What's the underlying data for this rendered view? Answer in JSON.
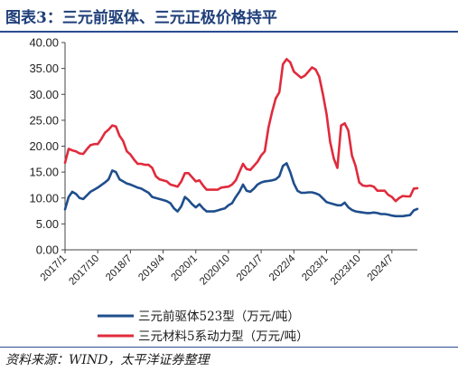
{
  "figure": {
    "title": "图表3：三元前驱体、三元正极价格持平",
    "source": "资料来源：WIND，太平洋证券整理"
  },
  "chart_data": {
    "type": "line",
    "title": "",
    "xlabel": "",
    "ylabel": "",
    "x_tick_labels": [
      "2017/1",
      "2017/10",
      "2018/7",
      "2019/4",
      "2020/1",
      "2020/10",
      "2021/7",
      "2022/4",
      "2023/1",
      "2023/10",
      "2024/7"
    ],
    "x_range": [
      "2017/1",
      "2025/2"
    ],
    "ylim": [
      0,
      40
    ],
    "y_ticks": [
      "0.00",
      "5.00",
      "10.00",
      "15.00",
      "20.00",
      "25.00",
      "30.00",
      "35.00",
      "40.00"
    ],
    "grid": false,
    "legend_position": "bottom",
    "series": [
      {
        "name": "三元前驱体523型（万元/吨）",
        "color": "#1f4e8c",
        "points": [
          [
            "2017/1",
            7.8
          ],
          [
            "2017/2",
            10.2
          ],
          [
            "2017/3",
            11.2
          ],
          [
            "2017/4",
            10.8
          ],
          [
            "2017/5",
            10.0
          ],
          [
            "2017/6",
            9.8
          ],
          [
            "2017/7",
            10.5
          ],
          [
            "2017/8",
            11.2
          ],
          [
            "2017/9",
            11.6
          ],
          [
            "2017/10",
            12.0
          ],
          [
            "2017/11",
            12.5
          ],
          [
            "2017/12",
            13.0
          ],
          [
            "2018/1",
            13.6
          ],
          [
            "2018/2",
            15.3
          ],
          [
            "2018/3",
            15.0
          ],
          [
            "2018/4",
            13.6
          ],
          [
            "2018/5",
            13.2
          ],
          [
            "2018/6",
            12.8
          ],
          [
            "2018/7",
            12.6
          ],
          [
            "2018/8",
            12.3
          ],
          [
            "2018/9",
            12.0
          ],
          [
            "2018/10",
            11.8
          ],
          [
            "2018/11",
            11.4
          ],
          [
            "2018/12",
            11.0
          ],
          [
            "2019/1",
            10.2
          ],
          [
            "2019/2",
            10.0
          ],
          [
            "2019/3",
            9.8
          ],
          [
            "2019/4",
            9.6
          ],
          [
            "2019/5",
            9.4
          ],
          [
            "2019/6",
            9.0
          ],
          [
            "2019/7",
            8.0
          ],
          [
            "2019/8",
            7.4
          ],
          [
            "2019/9",
            8.4
          ],
          [
            "2019/10",
            10.2
          ],
          [
            "2019/11",
            9.6
          ],
          [
            "2019/12",
            8.8
          ],
          [
            "2020/1",
            8.2
          ],
          [
            "2020/2",
            8.8
          ],
          [
            "2020/3",
            8.0
          ],
          [
            "2020/4",
            7.4
          ],
          [
            "2020/5",
            7.4
          ],
          [
            "2020/6",
            7.4
          ],
          [
            "2020/7",
            7.6
          ],
          [
            "2020/8",
            7.8
          ],
          [
            "2020/9",
            8.0
          ],
          [
            "2020/10",
            8.6
          ],
          [
            "2020/11",
            9.0
          ],
          [
            "2020/12",
            10.2
          ],
          [
            "2021/1",
            11.2
          ],
          [
            "2021/2",
            12.6
          ],
          [
            "2021/3",
            11.4
          ],
          [
            "2021/4",
            11.2
          ],
          [
            "2021/5",
            11.8
          ],
          [
            "2021/6",
            12.6
          ],
          [
            "2021/7",
            13.0
          ],
          [
            "2021/8",
            13.2
          ],
          [
            "2021/9",
            13.3
          ],
          [
            "2021/10",
            13.4
          ],
          [
            "2021/11",
            13.6
          ],
          [
            "2021/12",
            14.2
          ],
          [
            "2022/1",
            16.2
          ],
          [
            "2022/2",
            16.7
          ],
          [
            "2022/3",
            15.0
          ],
          [
            "2022/4",
            12.8
          ],
          [
            "2022/5",
            11.4
          ],
          [
            "2022/6",
            11.0
          ],
          [
            "2022/7",
            11.0
          ],
          [
            "2022/8",
            11.1
          ],
          [
            "2022/9",
            11.1
          ],
          [
            "2022/10",
            10.9
          ],
          [
            "2022/11",
            10.6
          ],
          [
            "2022/12",
            9.9
          ],
          [
            "2023/1",
            9.2
          ],
          [
            "2023/2",
            9.0
          ],
          [
            "2023/3",
            8.8
          ],
          [
            "2023/4",
            8.6
          ],
          [
            "2023/5",
            8.6
          ],
          [
            "2023/6",
            9.1
          ],
          [
            "2023/7",
            8.2
          ],
          [
            "2023/8",
            7.7
          ],
          [
            "2023/9",
            7.4
          ],
          [
            "2023/10",
            7.3
          ],
          [
            "2023/11",
            7.2
          ],
          [
            "2023/12",
            7.1
          ],
          [
            "2024/1",
            7.1
          ],
          [
            "2024/2",
            7.2
          ],
          [
            "2024/3",
            7.1
          ],
          [
            "2024/4",
            6.9
          ],
          [
            "2024/5",
            6.9
          ],
          [
            "2024/6",
            6.8
          ],
          [
            "2024/7",
            6.6
          ],
          [
            "2024/8",
            6.5
          ],
          [
            "2024/9",
            6.5
          ],
          [
            "2024/10",
            6.5
          ],
          [
            "2024/11",
            6.6
          ],
          [
            "2024/12",
            6.7
          ],
          [
            "2025/1",
            7.6
          ],
          [
            "2025/2",
            7.9
          ]
        ]
      },
      {
        "name": "三元材料5系动力型（万元/吨）",
        "color": "#e02b3c",
        "points": [
          [
            "2017/1",
            16.8
          ],
          [
            "2017/2",
            19.5
          ],
          [
            "2017/3",
            19.2
          ],
          [
            "2017/4",
            19.0
          ],
          [
            "2017/5",
            18.6
          ],
          [
            "2017/6",
            18.5
          ],
          [
            "2017/7",
            19.4
          ],
          [
            "2017/8",
            20.2
          ],
          [
            "2017/9",
            20.4
          ],
          [
            "2017/10",
            20.4
          ],
          [
            "2017/11",
            21.4
          ],
          [
            "2017/12",
            22.6
          ],
          [
            "2018/1",
            23.2
          ],
          [
            "2018/2",
            24.0
          ],
          [
            "2018/3",
            23.8
          ],
          [
            "2018/4",
            22.0
          ],
          [
            "2018/5",
            21.0
          ],
          [
            "2018/6",
            19.0
          ],
          [
            "2018/7",
            18.4
          ],
          [
            "2018/8",
            17.4
          ],
          [
            "2018/9",
            16.6
          ],
          [
            "2018/10",
            16.6
          ],
          [
            "2018/11",
            16.4
          ],
          [
            "2018/12",
            16.4
          ],
          [
            "2019/1",
            15.8
          ],
          [
            "2019/2",
            14.2
          ],
          [
            "2019/3",
            13.6
          ],
          [
            "2019/4",
            13.4
          ],
          [
            "2019/5",
            13.2
          ],
          [
            "2019/6",
            12.6
          ],
          [
            "2019/7",
            12.4
          ],
          [
            "2019/8",
            12.2
          ],
          [
            "2019/9",
            13.2
          ],
          [
            "2019/10",
            14.8
          ],
          [
            "2019/11",
            14.8
          ],
          [
            "2019/12",
            14.0
          ],
          [
            "2020/1",
            13.2
          ],
          [
            "2020/2",
            13.4
          ],
          [
            "2020/3",
            12.4
          ],
          [
            "2020/4",
            11.6
          ],
          [
            "2020/5",
            11.6
          ],
          [
            "2020/6",
            11.6
          ],
          [
            "2020/7",
            11.6
          ],
          [
            "2020/8",
            12.0
          ],
          [
            "2020/9",
            12.1
          ],
          [
            "2020/10",
            12.2
          ],
          [
            "2020/11",
            12.6
          ],
          [
            "2020/12",
            13.4
          ],
          [
            "2021/1",
            15.0
          ],
          [
            "2021/2",
            16.6
          ],
          [
            "2021/3",
            15.6
          ],
          [
            "2021/4",
            15.4
          ],
          [
            "2021/5",
            16.2
          ],
          [
            "2021/6",
            17.0
          ],
          [
            "2021/7",
            18.2
          ],
          [
            "2021/8",
            19.0
          ],
          [
            "2021/9",
            23.6
          ],
          [
            "2021/10",
            26.6
          ],
          [
            "2021/11",
            29.2
          ],
          [
            "2021/12",
            30.4
          ],
          [
            "2022/1",
            35.8
          ],
          [
            "2022/2",
            36.8
          ],
          [
            "2022/3",
            36.2
          ],
          [
            "2022/4",
            34.4
          ],
          [
            "2022/5",
            33.8
          ],
          [
            "2022/6",
            33.2
          ],
          [
            "2022/7",
            33.6
          ],
          [
            "2022/8",
            34.4
          ],
          [
            "2022/9",
            35.2
          ],
          [
            "2022/10",
            34.8
          ],
          [
            "2022/11",
            33.4
          ],
          [
            "2022/12",
            30.0
          ],
          [
            "2023/1",
            26.2
          ],
          [
            "2023/2",
            20.8
          ],
          [
            "2023/3",
            17.6
          ],
          [
            "2023/4",
            15.8
          ],
          [
            "2023/5",
            24.0
          ],
          [
            "2023/6",
            24.4
          ],
          [
            "2023/7",
            23.0
          ],
          [
            "2023/8",
            18.2
          ],
          [
            "2023/9",
            16.2
          ],
          [
            "2023/10",
            13.0
          ],
          [
            "2023/11",
            12.4
          ],
          [
            "2023/12",
            12.3
          ],
          [
            "2024/1",
            12.4
          ],
          [
            "2024/2",
            12.2
          ],
          [
            "2024/3",
            11.4
          ],
          [
            "2024/4",
            11.4
          ],
          [
            "2024/5",
            11.4
          ],
          [
            "2024/6",
            10.6
          ],
          [
            "2024/7",
            10.2
          ],
          [
            "2024/8",
            9.4
          ],
          [
            "2024/9",
            10.0
          ],
          [
            "2024/10",
            10.4
          ],
          [
            "2024/11",
            10.3
          ],
          [
            "2024/12",
            10.3
          ],
          [
            "2025/1",
            11.8
          ],
          [
            "2025/2",
            11.9
          ]
        ]
      }
    ]
  }
}
